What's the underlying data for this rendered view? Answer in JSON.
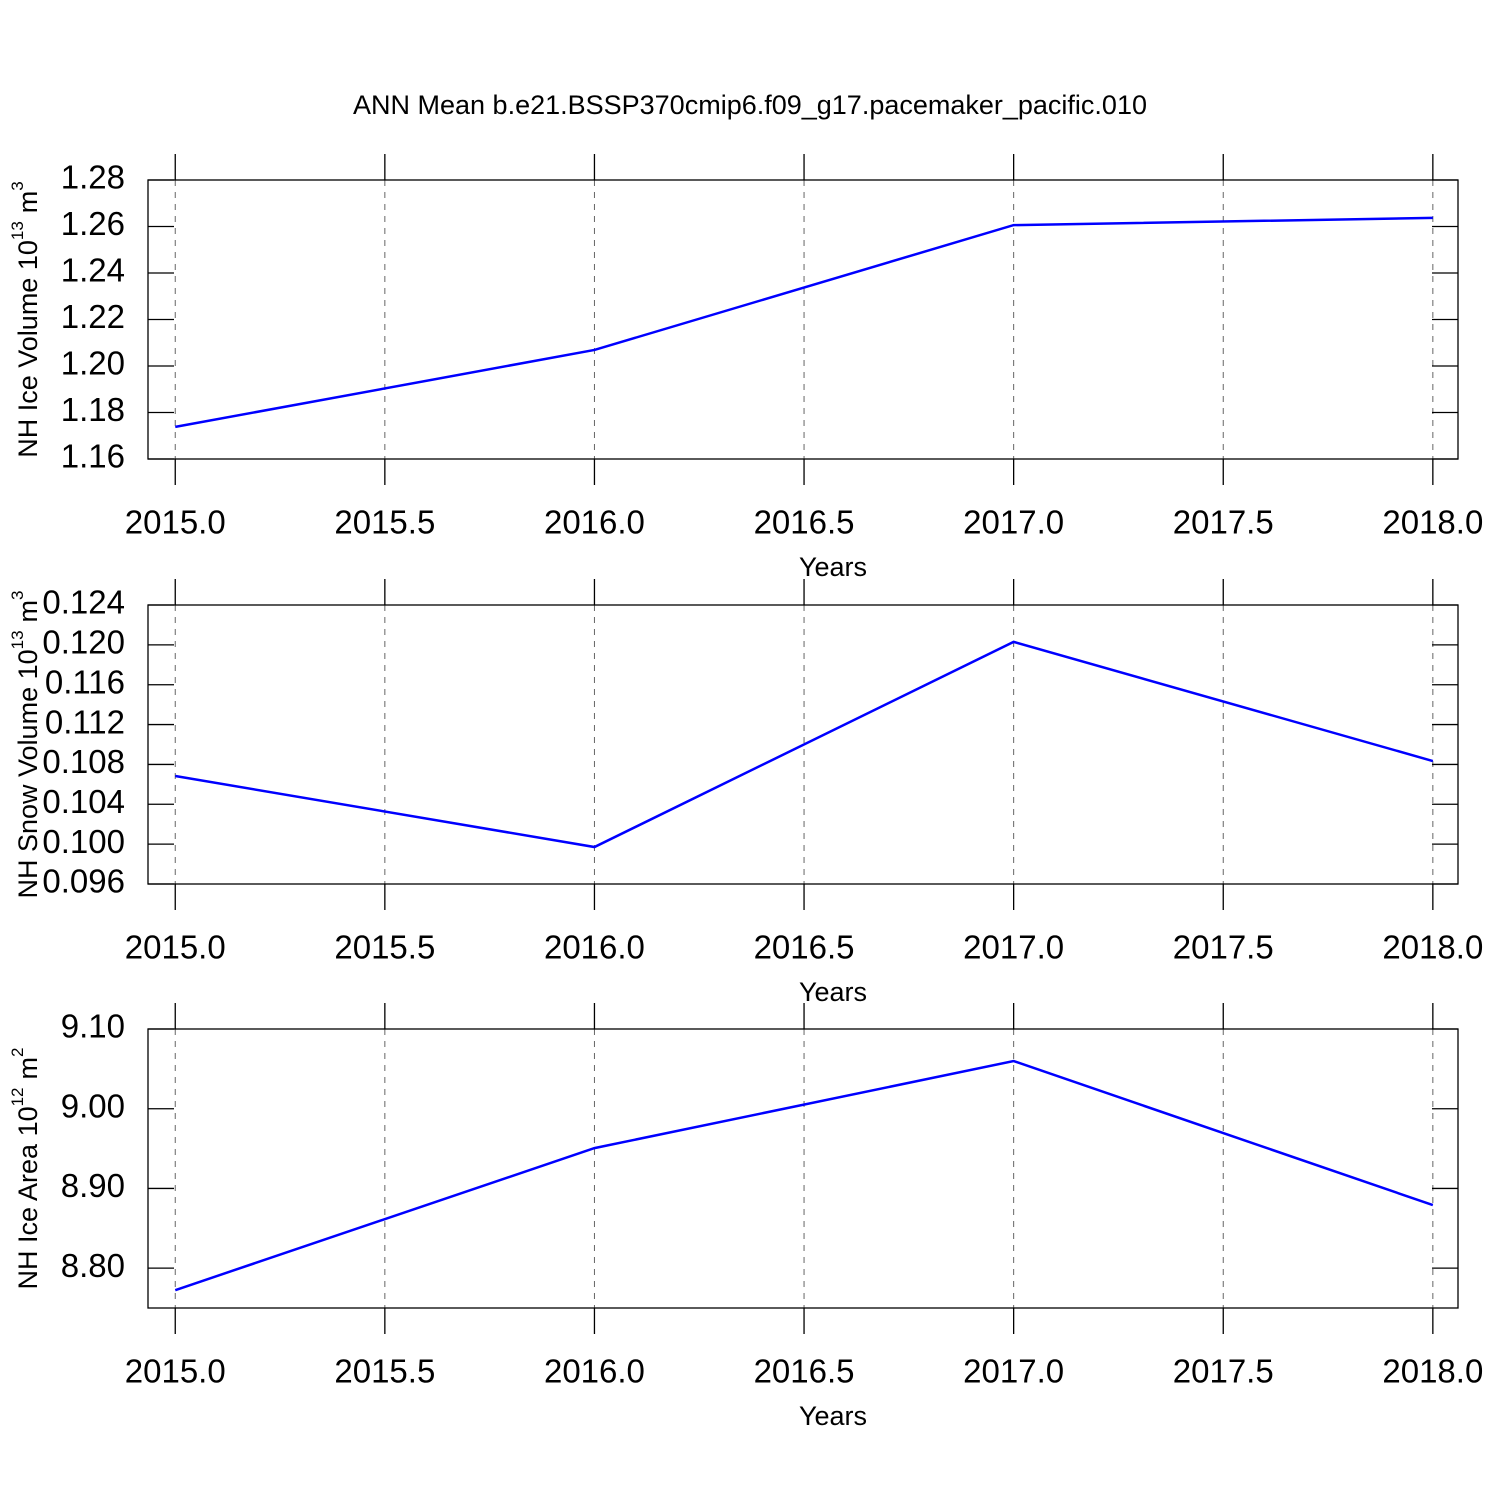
{
  "chart_data": [
    {
      "type": "line",
      "title": "ANN Mean b.e21.BSSP370cmip6.f09_g17.pacemaker_pacific.010",
      "ylabel": [
        "NH Ice Volume 10",
        "13",
        "m",
        "3"
      ],
      "xlabel": "Years",
      "x": [
        2015,
        2016,
        2017,
        2018
      ],
      "series": [
        {
          "color": "#0000ff",
          "values": [
            1.1738,
            1.2069,
            1.2606,
            1.2637
          ]
        }
      ],
      "xlim": [
        2014.935,
        2018.06
      ],
      "ylim": [
        1.16,
        1.28
      ],
      "xticks": [
        {
          "value": 2015,
          "label": "2015.0"
        },
        {
          "value": 2015.5,
          "label": "2015.5"
        },
        {
          "value": 2016,
          "label": "2016.0"
        },
        {
          "value": 2016.5,
          "label": "2016.5"
        },
        {
          "value": 2017,
          "label": "2017.0"
        },
        {
          "value": 2017.5,
          "label": "2017.5"
        },
        {
          "value": 2018,
          "label": "2018.0"
        }
      ],
      "yticks": [
        1.16,
        1.18,
        {
          "value": 1.2,
          "label": "1.20"
        },
        1.22,
        1.24,
        1.26,
        1.28
      ],
      "grid": true
    },
    {
      "type": "line",
      "ylabel": [
        "NH Snow Volume 10",
        "13",
        "m",
        "3"
      ],
      "xlabel": "Years",
      "x": [
        2015,
        2016,
        2017,
        2018
      ],
      "series": [
        {
          "color": "#0000ff",
          "values": [
            0.10684,
            0.09971,
            0.1203,
            0.10834
          ]
        }
      ],
      "xlim": [
        2014.935,
        2018.06
      ],
      "ylim": [
        0.096,
        0.124
      ],
      "xticks": [
        {
          "value": 2015,
          "label": "2015.0"
        },
        {
          "value": 2015.5,
          "label": "2015.5"
        },
        {
          "value": 2016,
          "label": "2016.0"
        },
        {
          "value": 2016.5,
          "label": "2016.5"
        },
        {
          "value": 2017,
          "label": "2017.0"
        },
        {
          "value": 2017.5,
          "label": "2017.5"
        },
        {
          "value": 2018,
          "label": "2018.0"
        }
      ],
      "yticks": [
        0.096,
        {
          "value": 0.1,
          "label": "0.100"
        },
        0.104,
        0.108,
        0.112,
        0.116,
        {
          "value": 0.12,
          "label": "0.120"
        },
        0.124
      ],
      "grid": true
    },
    {
      "type": "line",
      "ylabel": [
        "NH Ice Area 10",
        "12",
        "m",
        "2"
      ],
      "xlabel": "Years",
      "x": [
        2015,
        2016,
        2017,
        2018
      ],
      "series": [
        {
          "color": "#0000ff",
          "values": [
            8.7724,
            8.9506,
            9.0598,
            8.8791
          ]
        }
      ],
      "xlim": [
        2014.935,
        2018.06
      ],
      "ylim": [
        8.75,
        9.1
      ],
      "xticks": [
        {
          "value": 2015,
          "label": "2015.0"
        },
        {
          "value": 2015.5,
          "label": "2015.5"
        },
        {
          "value": 2016,
          "label": "2016.0"
        },
        {
          "value": 2016.5,
          "label": "2016.5"
        },
        {
          "value": 2017,
          "label": "2017.0"
        },
        {
          "value": 2017.5,
          "label": "2017.5"
        },
        {
          "value": 2018,
          "label": "2018.0"
        }
      ],
      "yticks": [
        {
          "value": 8.8,
          "label": "8.80"
        },
        {
          "value": 8.9,
          "label": "8.90"
        },
        {
          "value": 9.0,
          "label": "9.00"
        },
        {
          "value": 9.1,
          "label": "9.10"
        }
      ],
      "grid": true
    }
  ]
}
